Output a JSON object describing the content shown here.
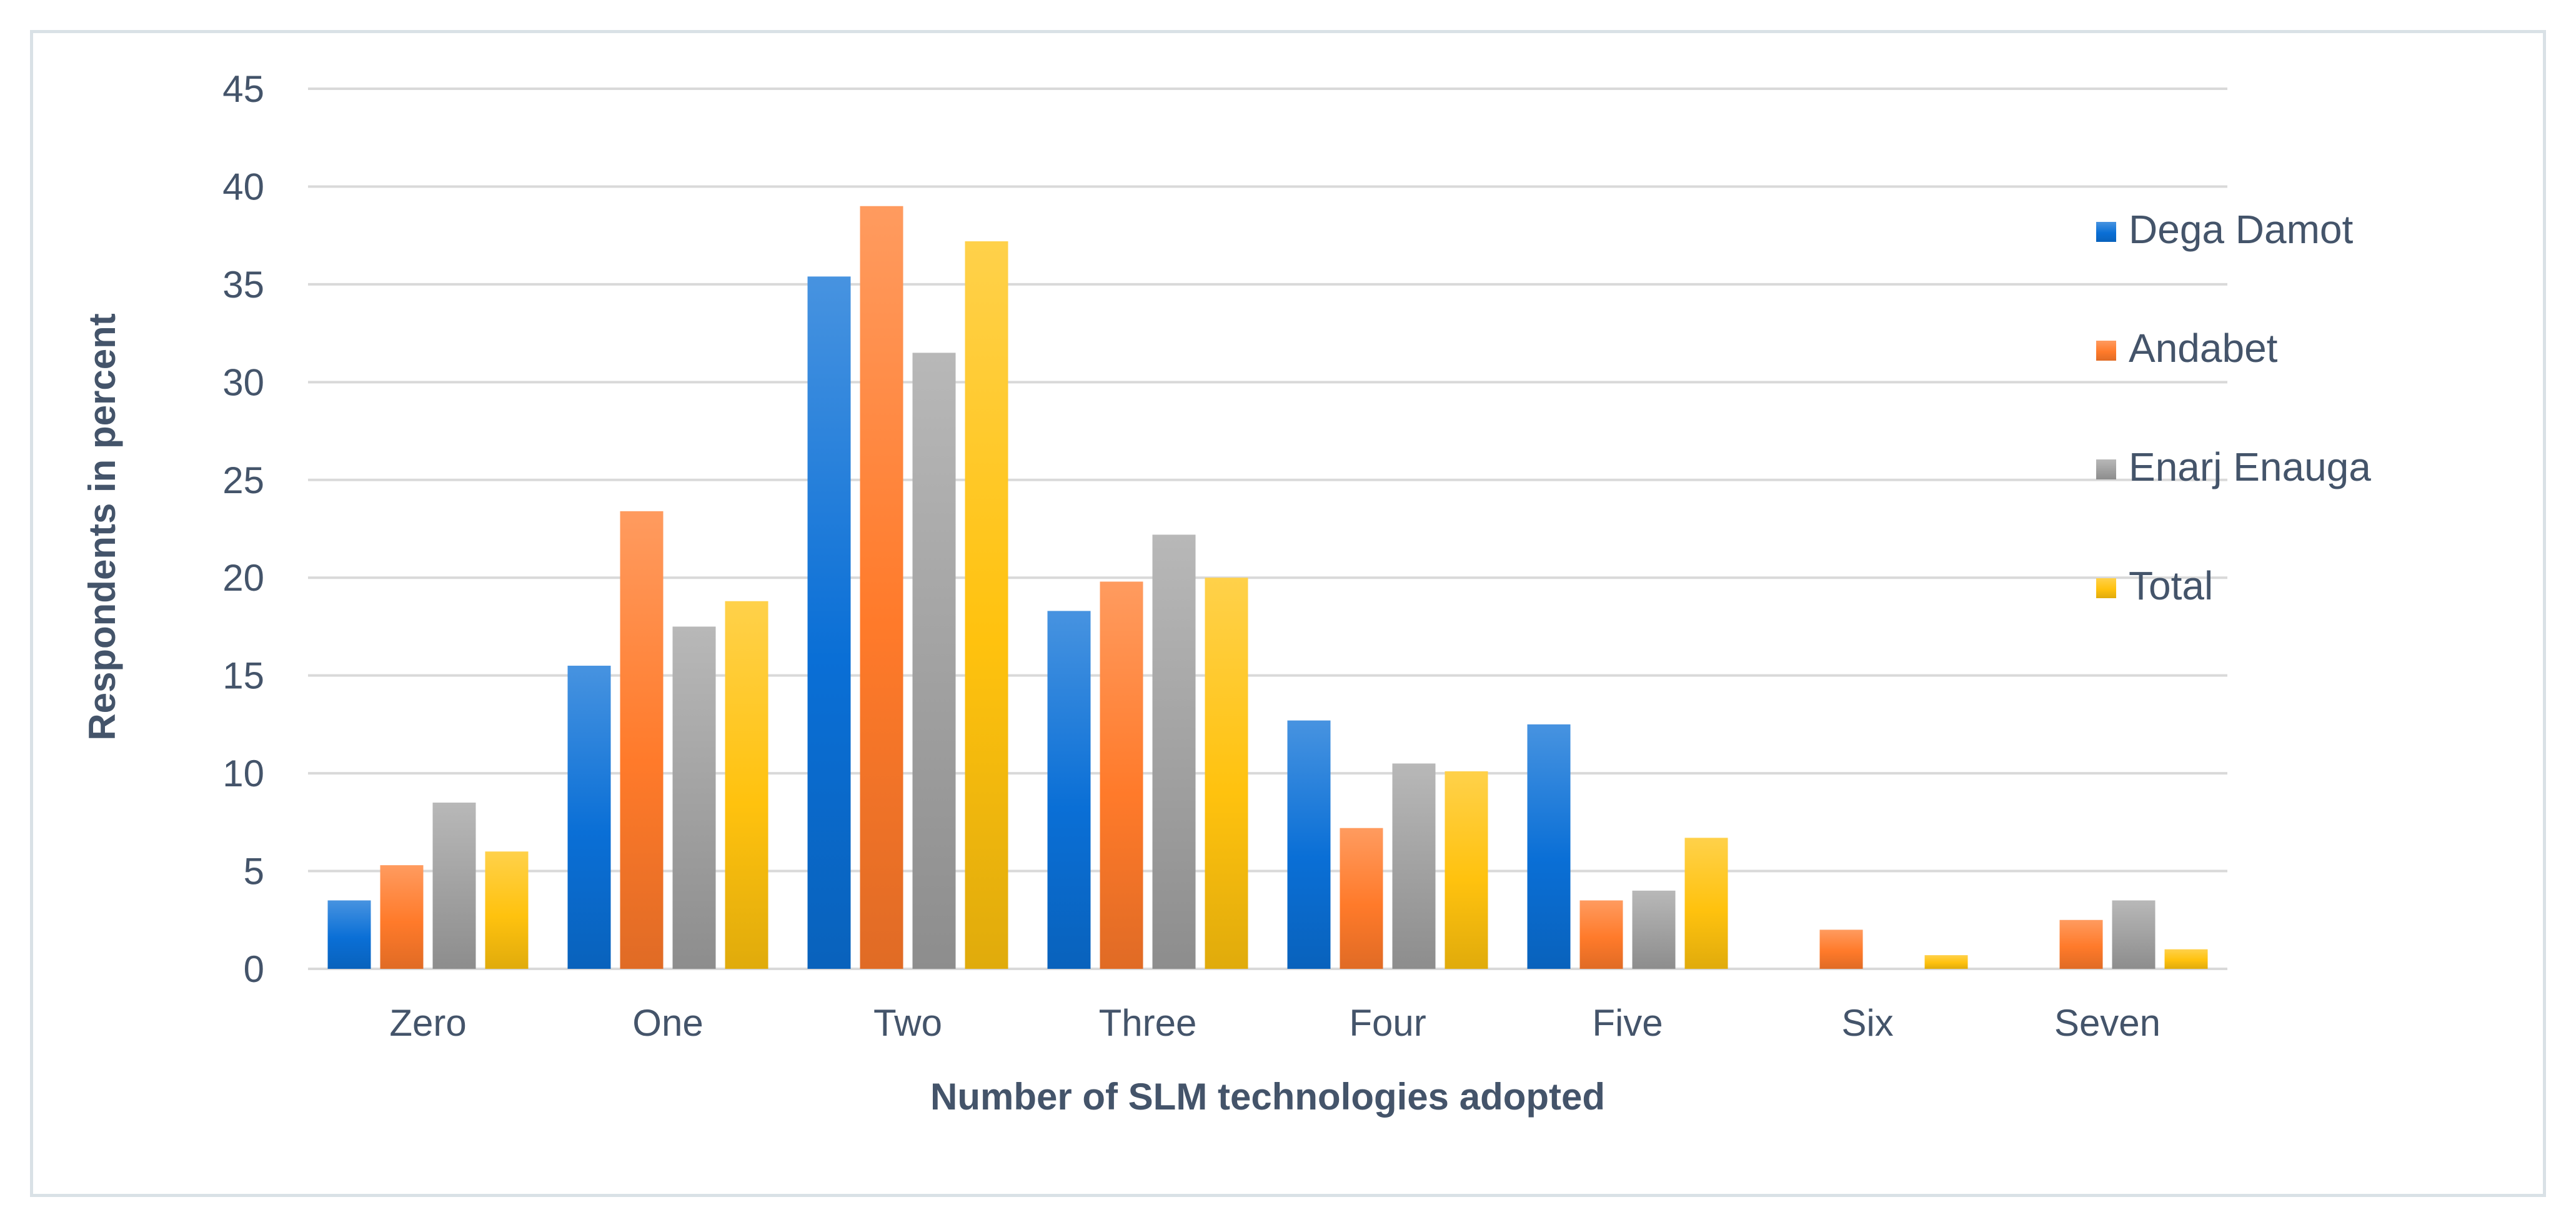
{
  "chart_data": {
    "type": "bar",
    "title": "",
    "xlabel": "Number of SLM technologies adopted",
    "ylabel": "Respondents in percent",
    "ylim": [
      0,
      45
    ],
    "yticks": [
      0,
      5,
      10,
      15,
      20,
      25,
      30,
      35,
      40,
      45
    ],
    "grid": true,
    "legend_position": "right",
    "categories": [
      "Zero",
      "One",
      "Two",
      "Three",
      "Four",
      "Five",
      "Six",
      "Seven"
    ],
    "series": [
      {
        "name": "Dega Damot",
        "color": "#0a6fd6",
        "values": [
          3.5,
          15.5,
          35.4,
          18.3,
          12.7,
          12.5,
          0,
          0
        ]
      },
      {
        "name": "Andabet",
        "color": "#ff7a2a",
        "values": [
          5.3,
          23.4,
          39.0,
          19.8,
          7.2,
          3.5,
          2.0,
          2.5
        ]
      },
      {
        "name": "Enarj Enauga",
        "color": "#a0a0a0",
        "values": [
          8.5,
          17.5,
          31.5,
          22.2,
          10.5,
          4.0,
          0,
          3.5
        ]
      },
      {
        "name": "Total",
        "color": "#ffc20e",
        "values": [
          6.0,
          18.8,
          37.2,
          20.0,
          10.1,
          6.7,
          0.7,
          1.0
        ]
      }
    ]
  }
}
